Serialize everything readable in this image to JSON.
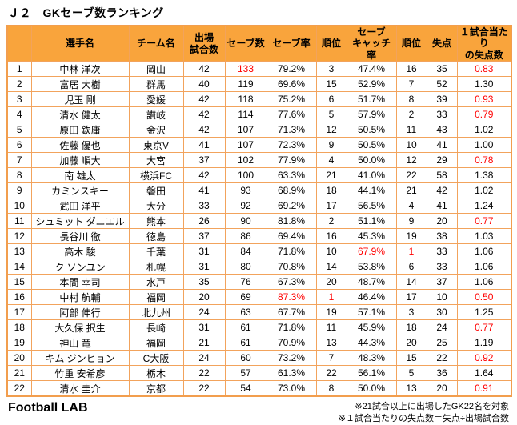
{
  "title": "Ｊ２　GKセーブ数ランキング",
  "footer": {
    "brand": "Football LAB",
    "note1": "※21試合以上に出場したGK22名を対象",
    "note2": "※１試合当たりの失点数＝失点÷出場試合数"
  },
  "colors": {
    "header_bg": "#F9A43C",
    "grid_border": "#F2A35C",
    "highlight_red": "#FF0000",
    "text": "#000000"
  },
  "chart_data": {
    "type": "table",
    "title": "Ｊ２　GKセーブ数ランキング",
    "columns": [
      "",
      "選手名",
      "チーム名",
      "出場\n試合数",
      "セーブ数",
      "セーブ率",
      "順位",
      "セーブ\nキャッチ率",
      "順位",
      "失点",
      "１試合当たり\nの失点数"
    ],
    "rows": [
      {
        "rank": 1,
        "name": "中林 洋次",
        "team": "岡山",
        "matches": 42,
        "saves": 133,
        "sr": "79.2%",
        "srr": 3,
        "cr": "47.4%",
        "crr": 16,
        "ga": 35,
        "gapm": "0.83",
        "red": [
          "saves",
          "gapm"
        ]
      },
      {
        "rank": 2,
        "name": "富居 大樹",
        "team": "群馬",
        "matches": 40,
        "saves": 119,
        "sr": "69.6%",
        "srr": 15,
        "cr": "52.9%",
        "crr": 7,
        "ga": 52,
        "gapm": "1.30",
        "red": []
      },
      {
        "rank": 3,
        "name": "児玉 剛",
        "team": "愛媛",
        "matches": 42,
        "saves": 118,
        "sr": "75.2%",
        "srr": 6,
        "cr": "51.7%",
        "crr": 8,
        "ga": 39,
        "gapm": "0.93",
        "red": [
          "gapm"
        ]
      },
      {
        "rank": 4,
        "name": "清水 健太",
        "team": "讃岐",
        "matches": 42,
        "saves": 114,
        "sr": "77.6%",
        "srr": 5,
        "cr": "57.9%",
        "crr": 2,
        "ga": 33,
        "gapm": "0.79",
        "red": [
          "gapm"
        ]
      },
      {
        "rank": 5,
        "name": "原田 欽庸",
        "team": "金沢",
        "matches": 42,
        "saves": 107,
        "sr": "71.3%",
        "srr": 12,
        "cr": "50.5%",
        "crr": 11,
        "ga": 43,
        "gapm": "1.02",
        "red": []
      },
      {
        "rank": 6,
        "name": "佐藤 優也",
        "team": "東京V",
        "matches": 41,
        "saves": 107,
        "sr": "72.3%",
        "srr": 9,
        "cr": "50.5%",
        "crr": 10,
        "ga": 41,
        "gapm": "1.00",
        "red": []
      },
      {
        "rank": 7,
        "name": "加藤 順大",
        "team": "大宮",
        "matches": 37,
        "saves": 102,
        "sr": "77.9%",
        "srr": 4,
        "cr": "50.0%",
        "crr": 12,
        "ga": 29,
        "gapm": "0.78",
        "red": [
          "gapm"
        ]
      },
      {
        "rank": 8,
        "name": "南 雄太",
        "team": "横浜FC",
        "matches": 42,
        "saves": 100,
        "sr": "63.3%",
        "srr": 21,
        "cr": "41.0%",
        "crr": 22,
        "ga": 58,
        "gapm": "1.38",
        "red": []
      },
      {
        "rank": 9,
        "name": "カミンスキー",
        "team": "磐田",
        "matches": 41,
        "saves": 93,
        "sr": "68.9%",
        "srr": 18,
        "cr": "44.1%",
        "crr": 21,
        "ga": 42,
        "gapm": "1.02",
        "red": []
      },
      {
        "rank": 10,
        "name": "武田 洋平",
        "team": "大分",
        "matches": 33,
        "saves": 92,
        "sr": "69.2%",
        "srr": 17,
        "cr": "56.5%",
        "crr": 4,
        "ga": 41,
        "gapm": "1.24",
        "red": []
      },
      {
        "rank": 11,
        "name": "シュミット ダニエル",
        "team": "熊本",
        "matches": 26,
        "saves": 90,
        "sr": "81.8%",
        "srr": 2,
        "cr": "51.1%",
        "crr": 9,
        "ga": 20,
        "gapm": "0.77",
        "red": [
          "gapm"
        ]
      },
      {
        "rank": 12,
        "name": "長谷川 徹",
        "team": "徳島",
        "matches": 37,
        "saves": 86,
        "sr": "69.4%",
        "srr": 16,
        "cr": "45.3%",
        "crr": 19,
        "ga": 38,
        "gapm": "1.03",
        "red": []
      },
      {
        "rank": 13,
        "name": "高木 駿",
        "team": "千葉",
        "matches": 31,
        "saves": 84,
        "sr": "71.8%",
        "srr": 10,
        "cr": "67.9%",
        "crr": 1,
        "ga": 33,
        "gapm": "1.06",
        "red": [
          "cr",
          "crr"
        ]
      },
      {
        "rank": 14,
        "name": "ク ソンユン",
        "team": "札幌",
        "matches": 31,
        "saves": 80,
        "sr": "70.8%",
        "srr": 14,
        "cr": "53.8%",
        "crr": 6,
        "ga": 33,
        "gapm": "1.06",
        "red": []
      },
      {
        "rank": 15,
        "name": "本間 幸司",
        "team": "水戸",
        "matches": 35,
        "saves": 76,
        "sr": "67.3%",
        "srr": 20,
        "cr": "48.7%",
        "crr": 14,
        "ga": 37,
        "gapm": "1.06",
        "red": []
      },
      {
        "rank": 16,
        "name": "中村 航輔",
        "team": "福岡",
        "matches": 20,
        "saves": 69,
        "sr": "87.3%",
        "srr": 1,
        "cr": "46.4%",
        "crr": 17,
        "ga": 10,
        "gapm": "0.50",
        "red": [
          "sr",
          "srr",
          "gapm"
        ]
      },
      {
        "rank": 17,
        "name": "阿部 伸行",
        "team": "北九州",
        "matches": 24,
        "saves": 63,
        "sr": "67.7%",
        "srr": 19,
        "cr": "57.1%",
        "crr": 3,
        "ga": 30,
        "gapm": "1.25",
        "red": []
      },
      {
        "rank": 18,
        "name": "大久保 択生",
        "team": "長崎",
        "matches": 31,
        "saves": 61,
        "sr": "71.8%",
        "srr": 11,
        "cr": "45.9%",
        "crr": 18,
        "ga": 24,
        "gapm": "0.77",
        "red": [
          "gapm"
        ]
      },
      {
        "rank": 19,
        "name": "神山 竜一",
        "team": "福岡",
        "matches": 21,
        "saves": 61,
        "sr": "70.9%",
        "srr": 13,
        "cr": "44.3%",
        "crr": 20,
        "ga": 25,
        "gapm": "1.19",
        "red": []
      },
      {
        "rank": 20,
        "name": "キム ジンヒョン",
        "team": "C大阪",
        "matches": 24,
        "saves": 60,
        "sr": "73.2%",
        "srr": 7,
        "cr": "48.3%",
        "crr": 15,
        "ga": 22,
        "gapm": "0.92",
        "red": [
          "gapm"
        ]
      },
      {
        "rank": 21,
        "name": "竹重 安希彦",
        "team": "栃木",
        "matches": 22,
        "saves": 57,
        "sr": "61.3%",
        "srr": 22,
        "cr": "56.1%",
        "crr": 5,
        "ga": 36,
        "gapm": "1.64",
        "red": []
      },
      {
        "rank": 22,
        "name": "清水 圭介",
        "team": "京都",
        "matches": 22,
        "saves": 54,
        "sr": "73.0%",
        "srr": 8,
        "cr": "50.0%",
        "crr": 13,
        "ga": 20,
        "gapm": "0.91",
        "red": [
          "gapm"
        ]
      }
    ]
  }
}
